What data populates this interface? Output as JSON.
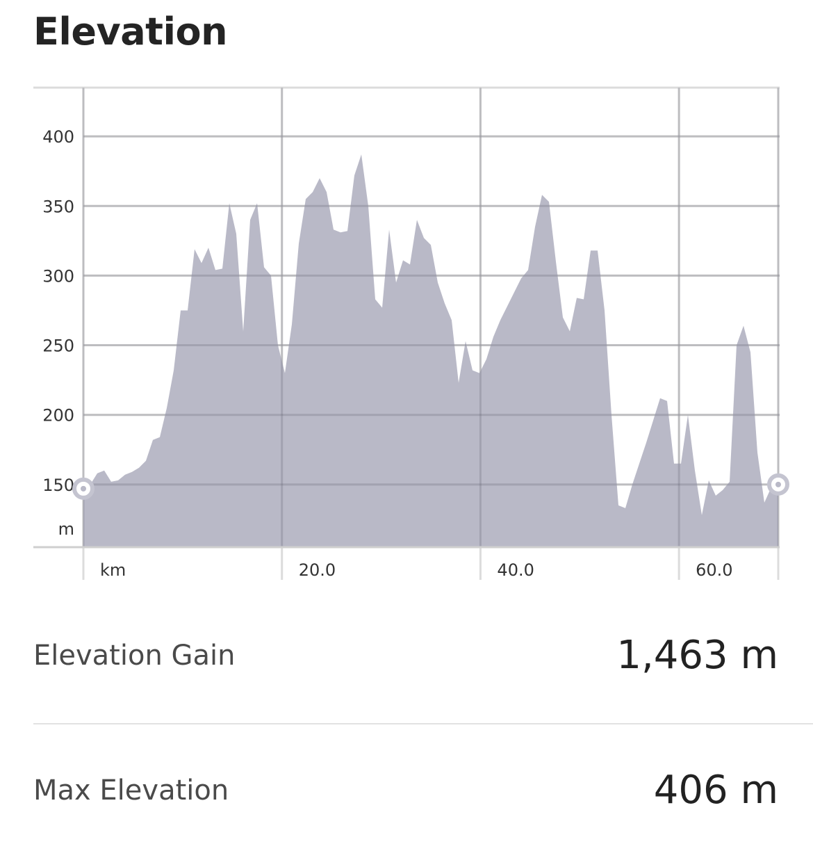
{
  "title": "Elevation",
  "chart_data": {
    "type": "area",
    "y_unit": "m",
    "x_unit": "km",
    "ylim": [
      105,
      435
    ],
    "xlim": [
      0,
      70
    ],
    "y_ticks": [
      150,
      200,
      250,
      300,
      350,
      400
    ],
    "y_tick_labels": [
      "150",
      "200",
      "250",
      "300",
      "350",
      "400"
    ],
    "x_ticks": [
      20,
      40,
      60
    ],
    "x_tick_labels": [
      "20.0",
      "40.0",
      "60.0"
    ],
    "grid": true,
    "fill_color": "#b9b9c7",
    "series": [
      {
        "x": [
          0,
          0.7,
          1.4,
          2.1,
          2.8,
          3.5,
          4.2,
          4.9,
          5.6,
          6.3,
          7.0,
          7.7,
          8.4,
          9.1,
          9.8,
          10.5,
          11.2,
          11.9,
          12.6,
          13.3,
          14.0,
          14.7,
          15.4,
          16.1,
          16.8,
          17.5,
          18.2,
          18.9,
          19.6,
          20.3,
          21.0,
          21.7,
          22.4,
          23.1,
          23.8,
          24.5,
          25.2,
          25.9,
          26.6,
          27.3,
          28.0,
          28.7,
          29.4,
          30.1,
          30.8,
          31.5,
          32.2,
          32.9,
          33.6,
          34.3,
          35.0,
          35.7,
          36.4,
          37.1,
          37.8,
          38.5,
          39.2,
          39.9,
          40.6,
          41.3,
          42.0,
          42.7,
          43.4,
          44.1,
          44.8,
          45.5,
          46.2,
          46.9,
          47.6,
          48.3,
          49.0,
          49.7,
          50.4,
          51.1,
          51.8,
          52.5,
          53.2,
          53.9,
          54.6,
          55.3,
          56.0,
          56.7,
          57.4,
          58.1,
          58.8,
          59.5,
          60.2,
          60.9,
          61.6,
          62.3,
          63.0,
          63.7,
          64.4,
          65.1,
          65.8,
          66.5,
          67.2,
          67.9,
          68.6,
          69.3,
          70.0
        ],
        "values": [
          147,
          150,
          158,
          160,
          152,
          153,
          157,
          159,
          162,
          167,
          182,
          184,
          205,
          232,
          275,
          275,
          319,
          309,
          320,
          304,
          305,
          352,
          330,
          260,
          340,
          352,
          306,
          300,
          250,
          230,
          265,
          323,
          355,
          360,
          370,
          360,
          333,
          331,
          332,
          372,
          387,
          350,
          283,
          277,
          333,
          295,
          311,
          308,
          340,
          327,
          322,
          295,
          280,
          268,
          223,
          253,
          232,
          230,
          240,
          256,
          268,
          278,
          288,
          298,
          304,
          335,
          358,
          353,
          310,
          270,
          260,
          284,
          283,
          318,
          318,
          275,
          200,
          135,
          133,
          150,
          165,
          180,
          196,
          212,
          210,
          165,
          165,
          200,
          160,
          128,
          153,
          142,
          146,
          152,
          250,
          264,
          245,
          173,
          137,
          148,
          150
        ]
      }
    ]
  },
  "stats": [
    {
      "label": "Elevation Gain",
      "value": "1,463 m"
    },
    {
      "label": "Max Elevation",
      "value": "406 m"
    }
  ]
}
